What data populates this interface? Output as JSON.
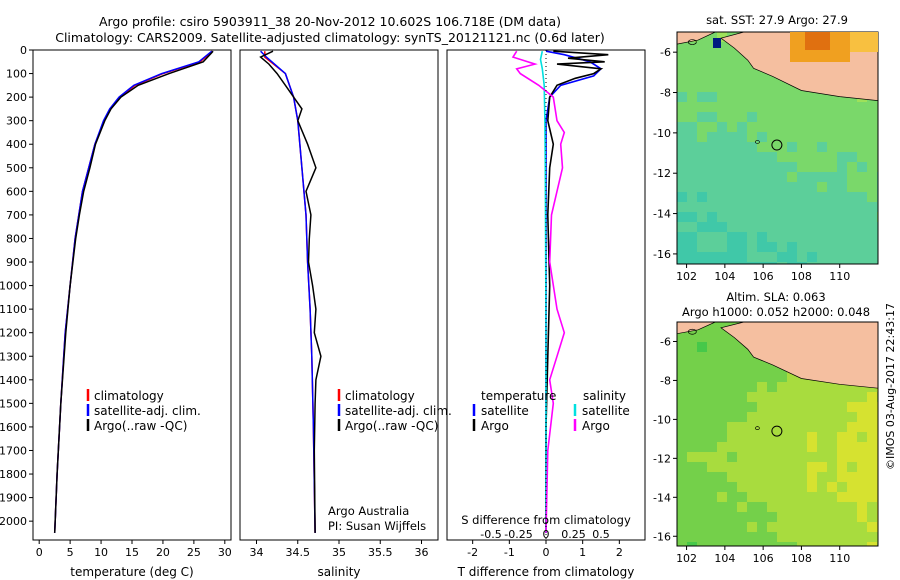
{
  "header": {
    "line1": "Argo profile: csiro 5903911_38 20-Nov-2012 10.602S 106.718E (DM data)",
    "line2": "Climatology: CARS2009. Satellite-adjusted climatology: synTS_20121121.nc (0.6d later)"
  },
  "colors": {
    "climatology": "#ff0000",
    "satellite": "#0000ff",
    "argo": "#000000",
    "sal_sat": "#00e0e0",
    "sal_argo": "#ff00ff",
    "land": "#f5bfa0"
  },
  "chart_data": [
    {
      "id": "temperature",
      "type": "line",
      "xlabel": "temperature (deg C)",
      "xlim": [
        -1,
        31
      ],
      "ylim": [
        0,
        2080
      ],
      "xticks": [
        0,
        5,
        10,
        15,
        20,
        25,
        30
      ],
      "yticks": [
        0,
        100,
        200,
        300,
        400,
        500,
        600,
        700,
        800,
        900,
        1000,
        1100,
        1200,
        1300,
        1400,
        1500,
        1600,
        1700,
        1800,
        1900,
        2000
      ],
      "legend": [
        "climatology",
        "satellite-adj. clim.",
        "Argo(..raw -QC)"
      ],
      "series": [
        {
          "name": "climatology",
          "depth": [
            5,
            50,
            100,
            150,
            200,
            250,
            300,
            400,
            500,
            600,
            700,
            800,
            1000,
            1200,
            1500,
            1800,
            2050
          ],
          "values": [
            28.0,
            26.0,
            20.0,
            15.5,
            13.0,
            11.5,
            10.5,
            9.0,
            8.0,
            7.0,
            6.4,
            5.8,
            5.0,
            4.2,
            3.5,
            2.9,
            2.5
          ]
        },
        {
          "name": "satellite-adj. clim.",
          "depth": [
            5,
            50,
            100,
            150,
            200,
            250,
            300,
            400,
            500,
            600,
            700,
            800,
            1000,
            1200,
            1500,
            1800,
            2050
          ],
          "values": [
            27.9,
            25.8,
            19.8,
            15.3,
            12.9,
            11.4,
            10.4,
            9.0,
            8.0,
            7.0,
            6.4,
            5.8,
            5.0,
            4.2,
            3.5,
            2.9,
            2.5
          ]
        },
        {
          "name": "Argo(..raw -QC)",
          "depth": [
            5,
            50,
            100,
            150,
            200,
            250,
            300,
            400,
            500,
            600,
            700,
            800,
            1000,
            1200,
            1500,
            1800,
            2050
          ],
          "values": [
            28.1,
            26.5,
            21.0,
            16.0,
            13.2,
            11.6,
            10.6,
            9.1,
            8.2,
            7.2,
            6.5,
            5.9,
            5.0,
            4.3,
            3.5,
            2.9,
            2.5
          ]
        }
      ]
    },
    {
      "id": "salinity",
      "type": "line",
      "xlabel": "salinity",
      "xlim": [
        33.8,
        36.2
      ],
      "ylim": [
        0,
        2080
      ],
      "xticks": [
        34,
        34.5,
        35,
        35.5,
        36
      ],
      "legend": [
        "climatology",
        "satellite-adj. clim.",
        "Argo(..raw -QC)"
      ],
      "annotation": [
        "Argo Australia",
        "PI: Susan Wijffels"
      ],
      "series": [
        {
          "name": "climatology",
          "depth": [
            5,
            30,
            100,
            200,
            300,
            500,
            700,
            900,
            1100,
            1300,
            1600,
            2050
          ],
          "values": [
            34.1,
            34.1,
            34.35,
            34.45,
            34.5,
            34.55,
            34.6,
            34.62,
            34.65,
            34.67,
            34.69,
            34.71
          ]
        },
        {
          "name": "satellite-adj. clim.",
          "depth": [
            5,
            30,
            100,
            200,
            300,
            500,
            700,
            900,
            1100,
            1300,
            1600,
            2050
          ],
          "values": [
            34.05,
            34.12,
            34.35,
            34.45,
            34.5,
            34.55,
            34.6,
            34.62,
            34.65,
            34.67,
            34.69,
            34.71
          ]
        },
        {
          "name": "Argo(..raw -QC)",
          "depth": [
            5,
            30,
            60,
            100,
            150,
            200,
            250,
            300,
            400,
            500,
            600,
            700,
            800,
            900,
            1000,
            1100,
            1200,
            1300,
            1400,
            1500,
            1700,
            2050
          ],
          "values": [
            34.2,
            34.05,
            34.15,
            34.25,
            34.35,
            34.45,
            34.55,
            34.5,
            34.62,
            34.72,
            34.6,
            34.66,
            34.64,
            34.63,
            34.68,
            34.72,
            34.7,
            34.78,
            34.72,
            34.71,
            34.7,
            34.71
          ]
        }
      ]
    },
    {
      "id": "differences",
      "type": "line",
      "xlabel": "T difference from climatology",
      "xlabel_top": "S difference from climatology",
      "xlim": [
        -2.7,
        2.7
      ],
      "ylim": [
        0,
        2080
      ],
      "xticks_bottom": [
        -2,
        -1,
        0,
        1,
        2
      ],
      "xticks_top": [
        "-0.5",
        "-0.25",
        "0",
        "0.25",
        "0.5"
      ],
      "legend": [
        "temperature",
        "satellite",
        "Argo",
        "salinity",
        "satellite",
        "Argo"
      ],
      "series": [
        {
          "name": "satellite",
          "depth": [
            5,
            20,
            50,
            80,
            110,
            150,
            200,
            300,
            500,
            800,
            1200,
            1600,
            2050
          ],
          "values": [
            0,
            0.5,
            1.2,
            1.5,
            1.3,
            0.4,
            0.1,
            0,
            0,
            0,
            0,
            0,
            0
          ]
        },
        {
          "name": "Argo",
          "depth": [
            5,
            20,
            35,
            50,
            60,
            80,
            100,
            120,
            150,
            200,
            300,
            400,
            500,
            700,
            1000,
            1300,
            1600,
            2050
          ],
          "values": [
            0.2,
            1.7,
            0.6,
            1.6,
            0.3,
            1.5,
            1.3,
            0.8,
            0.3,
            0.1,
            0.05,
            0.2,
            0.1,
            0.05,
            0.1,
            0.05,
            0,
            0
          ]
        },
        {
          "name": "satellite",
          "depth": [
            5,
            40,
            80,
            150,
            300,
            500,
            800,
            1200,
            1600,
            2050
          ],
          "values": [
            -0.1,
            -0.15,
            -0.1,
            -0.05,
            -0.03,
            -0.02,
            -0.01,
            0,
            0,
            0
          ]
        },
        {
          "name": "Argo",
          "depth": [
            5,
            30,
            60,
            80,
            100,
            150,
            200,
            300,
            350,
            400,
            500,
            600,
            700,
            900,
            1100,
            1200,
            1300,
            1400,
            1500,
            1700,
            2050
          ],
          "values": [
            -0.8,
            -0.9,
            -0.3,
            -0.8,
            -0.7,
            -0.2,
            0.2,
            0.3,
            0.5,
            0.4,
            0.45,
            0.3,
            0.15,
            0.1,
            0.3,
            0.5,
            0.3,
            0.1,
            0.2,
            0.05,
            0
          ]
        }
      ]
    },
    {
      "id": "map_sst",
      "type": "heatmap",
      "title": "sat. SST: 27.9 Argo: 27.9",
      "xticks": [
        102,
        104,
        106,
        108,
        110
      ],
      "yticks": [
        -6,
        -8,
        -10,
        -12,
        -14,
        -16
      ],
      "xlim": [
        101.5,
        112
      ],
      "ylim": [
        -16.5,
        -5
      ],
      "argo_position": [
        106.718,
        -10.602
      ]
    },
    {
      "id": "map_sla",
      "type": "heatmap",
      "title_lines": [
        "Altim. SLA: 0.063",
        "Argo h1000: 0.052 h2000: 0.048"
      ],
      "xticks": [
        102,
        104,
        106,
        108,
        110
      ],
      "yticks": [
        -6,
        -8,
        -10,
        -12,
        -14,
        -16
      ],
      "xlim": [
        101.5,
        112
      ],
      "ylim": [
        -16.5,
        -5
      ],
      "argo_position": [
        106.718,
        -10.602
      ]
    }
  ],
  "footer_credit": "©IMOS 03-Aug-2017 22:43:17"
}
